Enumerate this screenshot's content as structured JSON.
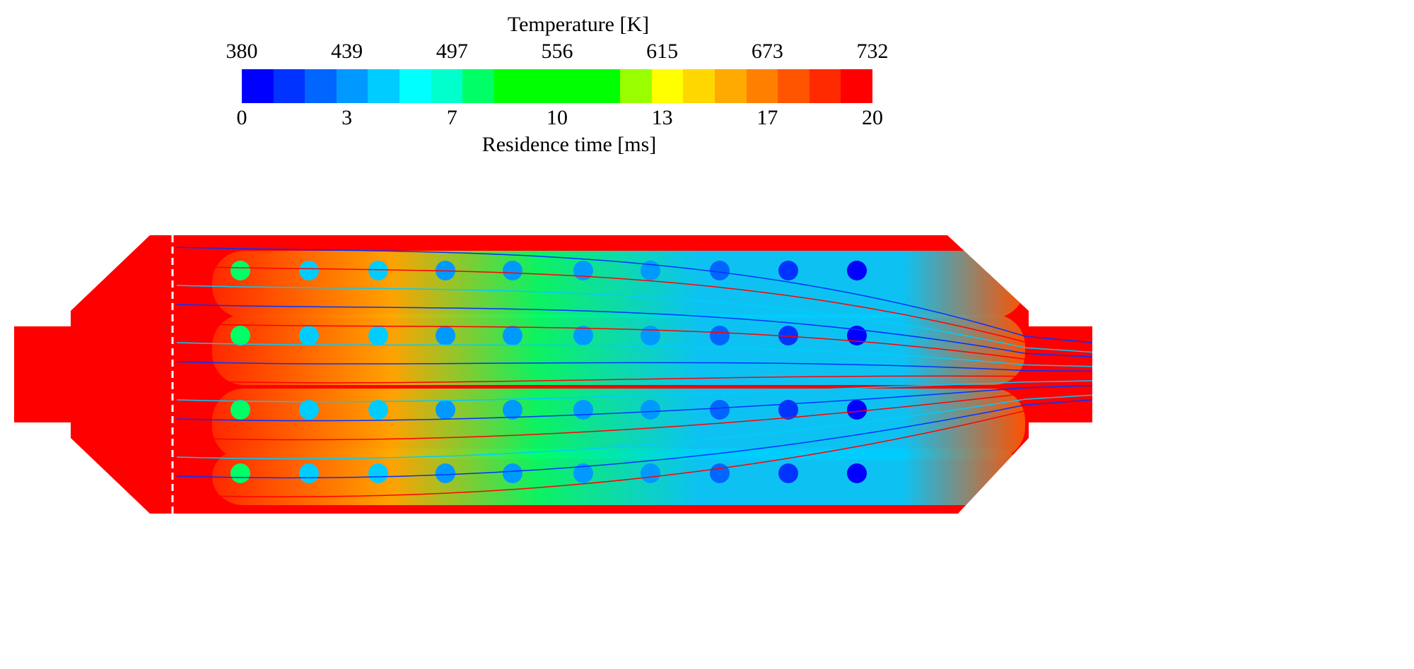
{
  "legend": {
    "top_title": "Temperature [K]",
    "top_ticks": [
      "380",
      "439",
      "497",
      "556",
      "615",
      "673",
      "732"
    ],
    "bottom_ticks": [
      "0",
      "3",
      "7",
      "10",
      "13",
      "17",
      "20"
    ],
    "bottom_title": "Residence time [ms]",
    "colors": [
      "#0000ff",
      "#0033ff",
      "#0066ff",
      "#0099ff",
      "#00ccff",
      "#00ffff",
      "#00ffcc",
      "#00ff66",
      "#00ff00",
      "#00ff00",
      "#00ff00",
      "#00ff00",
      "#99ff00",
      "#ffff00",
      "#ffd700",
      "#ffaa00",
      "#ff8000",
      "#ff5500",
      "#ff2a00",
      "#ff0000"
    ]
  }
}
